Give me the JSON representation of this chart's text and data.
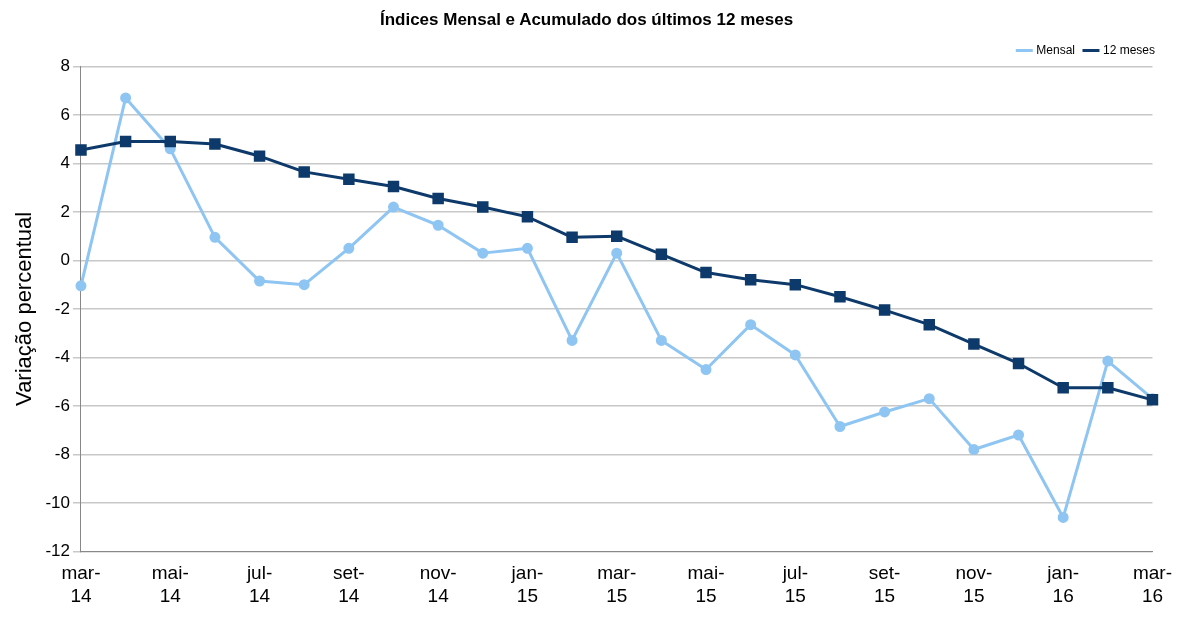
{
  "chart_data": {
    "type": "line",
    "title": "Índices Mensal e Acumulado dos últimos 12 meses",
    "ylabel": "Variação percentual",
    "categories": [
      "mar-14",
      null,
      "mai-14",
      null,
      "jul-14",
      null,
      "set-14",
      null,
      "nov-14",
      null,
      "jan-15",
      null,
      "mar-15",
      null,
      "mai-15",
      null,
      "jul-15",
      null,
      "set-15",
      null,
      "nov-15",
      null,
      "jan-16",
      null,
      "mar-16"
    ],
    "series": [
      {
        "name": "Mensal",
        "color": "#8ec5f2",
        "marker": "circle",
        "values": [
          -1.05,
          6.7,
          4.6,
          0.95,
          -0.85,
          -1.0,
          0.5,
          2.2,
          1.45,
          0.3,
          0.5,
          -3.3,
          0.3,
          -3.3,
          -4.5,
          -2.65,
          -3.9,
          -6.85,
          -6.25,
          -5.7,
          -7.8,
          -7.2,
          -10.6,
          -4.15,
          -5.7
        ]
      },
      {
        "name": "12 meses",
        "color": "#0d3a6b",
        "marker": "square",
        "values": [
          4.55,
          4.9,
          4.9,
          4.8,
          4.3,
          3.65,
          3.35,
          3.05,
          2.55,
          2.2,
          1.8,
          0.95,
          1.0,
          0.25,
          -0.5,
          -0.8,
          -1.0,
          -1.5,
          -2.05,
          -2.65,
          -3.45,
          -4.25,
          -5.25,
          -5.25,
          -5.75
        ]
      }
    ],
    "ylim": [
      -12,
      8
    ],
    "yticks": [
      -12,
      -10,
      -8,
      -6,
      -4,
      -2,
      0,
      2,
      4,
      6,
      8
    ],
    "grid": "y",
    "legend": "top right"
  }
}
